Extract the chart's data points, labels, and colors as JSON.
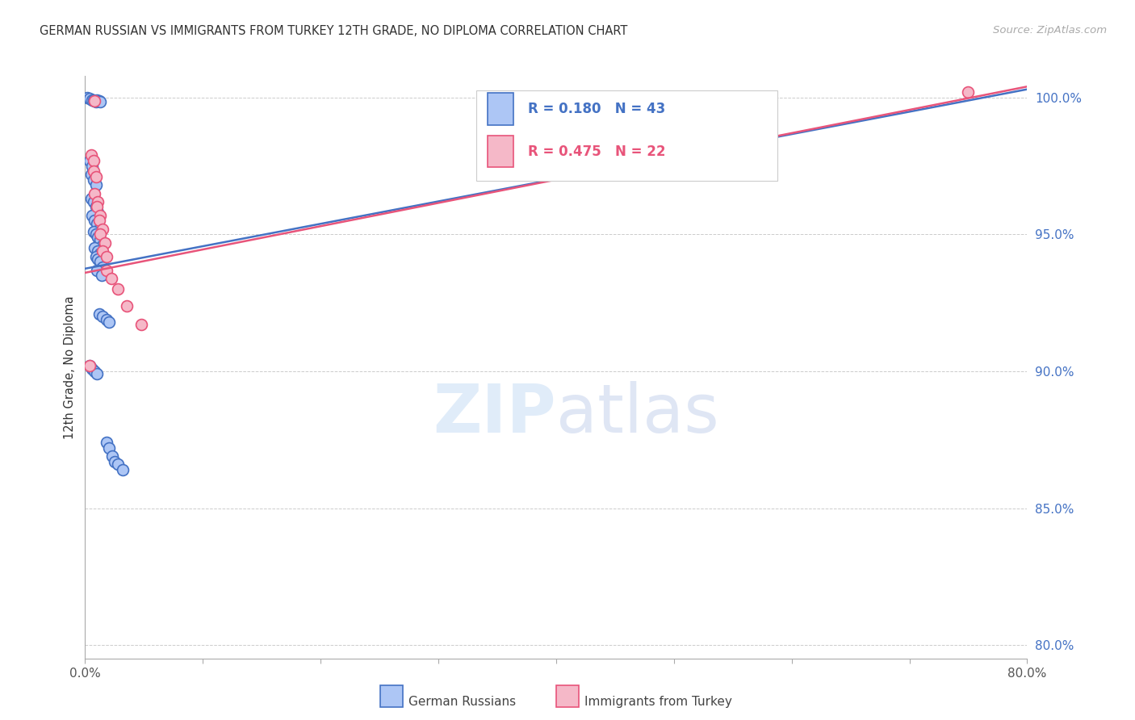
{
  "title": "GERMAN RUSSIAN VS IMMIGRANTS FROM TURKEY 12TH GRADE, NO DIPLOMA CORRELATION CHART",
  "source": "Source: ZipAtlas.com",
  "ylabel": "12th Grade, No Diploma",
  "watermark": "ZIPatlas",
  "xmin": 0.0,
  "xmax": 0.8,
  "ymin": 0.795,
  "ymax": 1.008,
  "x_ticks": [
    0.0,
    0.1,
    0.2,
    0.3,
    0.4,
    0.5,
    0.6,
    0.7,
    0.8
  ],
  "x_tick_labels": [
    "0.0%",
    "",
    "",
    "",
    "",
    "",
    "",
    "",
    "80.0%"
  ],
  "y_ticks": [
    0.8,
    0.85,
    0.9,
    0.95,
    1.0
  ],
  "y_tick_labels": [
    "80.0%",
    "85.0%",
    "90.0%",
    "95.0%",
    "100.0%"
  ],
  "blue_color": "#4472c4",
  "pink_color": "#e8547a",
  "blue_scatter_face": "#adc6f5",
  "pink_scatter_face": "#f5b8c8",
  "blue_line_x": [
    0.0,
    0.8
  ],
  "blue_line_y": [
    0.9375,
    1.003
  ],
  "pink_line_x": [
    0.0,
    0.8
  ],
  "pink_line_y": [
    0.936,
    1.004
  ],
  "grid_color": "#cccccc",
  "background_color": "#ffffff",
  "scatter_size": 100,
  "scatter_linewidth": 1.2,
  "blue_x": [
    0.002,
    0.004,
    0.006,
    0.007,
    0.008,
    0.009,
    0.01,
    0.012,
    0.013,
    0.004,
    0.006,
    0.005,
    0.007,
    0.009,
    0.005,
    0.007,
    0.009,
    0.011,
    0.006,
    0.008,
    0.01,
    0.012,
    0.007,
    0.009,
    0.011,
    0.013,
    0.015,
    0.008,
    0.011,
    0.013,
    0.009,
    0.011,
    0.013,
    0.015,
    0.01,
    0.014,
    0.012,
    0.015,
    0.018,
    0.02,
    0.004,
    0.006,
    0.008,
    0.01,
    0.018,
    0.02,
    0.023,
    0.025,
    0.028,
    0.032
  ],
  "blue_y": [
    0.9998,
    0.9995,
    0.9992,
    0.999,
    0.9988,
    0.9985,
    0.9992,
    0.9988,
    0.9985,
    0.977,
    0.975,
    0.972,
    0.97,
    0.968,
    0.963,
    0.962,
    0.96,
    0.958,
    0.957,
    0.955,
    0.954,
    0.952,
    0.951,
    0.95,
    0.949,
    0.948,
    0.946,
    0.945,
    0.944,
    0.943,
    0.942,
    0.941,
    0.94,
    0.938,
    0.937,
    0.935,
    0.921,
    0.92,
    0.919,
    0.918,
    0.902,
    0.901,
    0.9,
    0.899,
    0.874,
    0.872,
    0.869,
    0.867,
    0.866,
    0.864
  ],
  "pink_x": [
    0.008,
    0.005,
    0.007,
    0.007,
    0.009,
    0.008,
    0.011,
    0.01,
    0.013,
    0.012,
    0.015,
    0.013,
    0.017,
    0.015,
    0.018,
    0.018,
    0.022,
    0.028,
    0.035,
    0.048,
    0.004,
    0.75
  ],
  "pink_y": [
    0.9988,
    0.979,
    0.977,
    0.973,
    0.971,
    0.965,
    0.962,
    0.96,
    0.957,
    0.955,
    0.952,
    0.95,
    0.947,
    0.944,
    0.942,
    0.937,
    0.934,
    0.93,
    0.924,
    0.917,
    0.902,
    1.002
  ]
}
